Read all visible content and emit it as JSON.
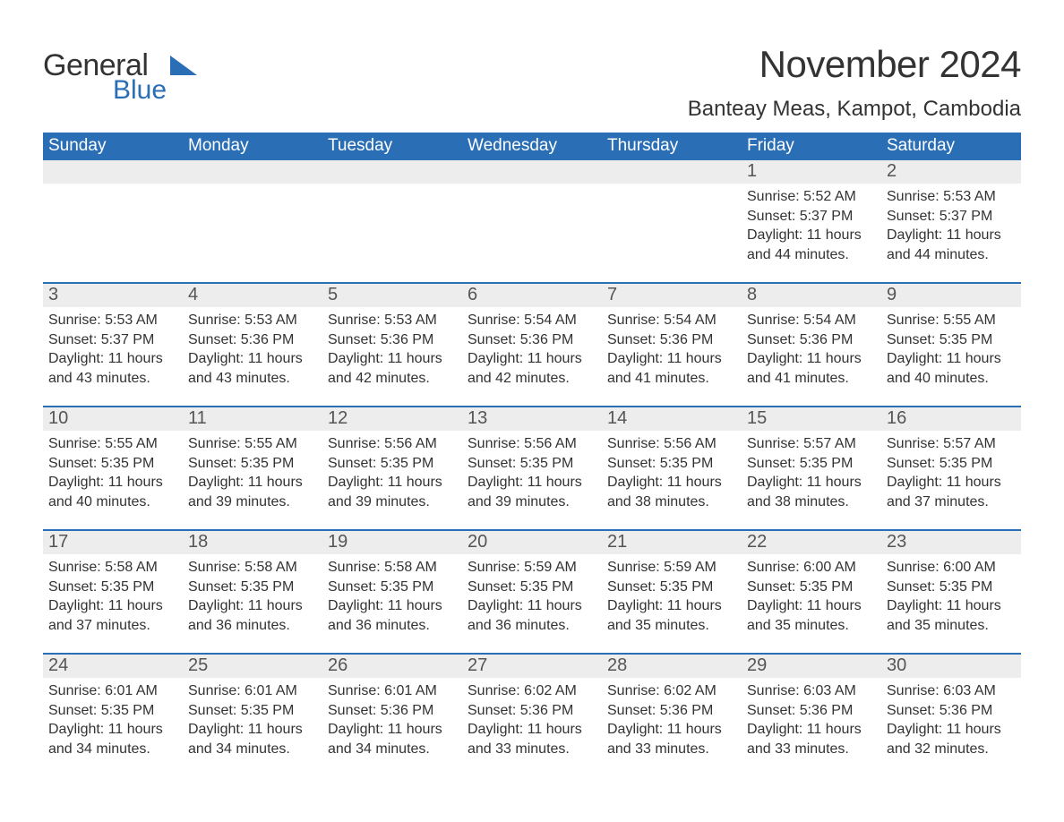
{
  "brand": {
    "name_main": "General",
    "name_sub": "Blue",
    "accent_color": "#2a6eb6",
    "text_color": "#333333"
  },
  "title": {
    "month_year": "November 2024",
    "location": "Banteay Meas, Kampot, Cambodia"
  },
  "calendar": {
    "header_bg": "#2a6eb6",
    "header_text_color": "#ffffff",
    "daynum_bg": "#ededed",
    "row_border_color": "#2a6eb6",
    "weekdays": [
      "Sunday",
      "Monday",
      "Tuesday",
      "Wednesday",
      "Thursday",
      "Friday",
      "Saturday"
    ],
    "weeks": [
      [
        {
          "empty": true
        },
        {
          "empty": true
        },
        {
          "empty": true
        },
        {
          "empty": true
        },
        {
          "empty": true
        },
        {
          "day": "1",
          "sunrise": "Sunrise: 5:52 AM",
          "sunset": "Sunset: 5:37 PM",
          "daylight": "Daylight: 11 hours and 44 minutes."
        },
        {
          "day": "2",
          "sunrise": "Sunrise: 5:53 AM",
          "sunset": "Sunset: 5:37 PM",
          "daylight": "Daylight: 11 hours and 44 minutes."
        }
      ],
      [
        {
          "day": "3",
          "sunrise": "Sunrise: 5:53 AM",
          "sunset": "Sunset: 5:37 PM",
          "daylight": "Daylight: 11 hours and 43 minutes."
        },
        {
          "day": "4",
          "sunrise": "Sunrise: 5:53 AM",
          "sunset": "Sunset: 5:36 PM",
          "daylight": "Daylight: 11 hours and 43 minutes."
        },
        {
          "day": "5",
          "sunrise": "Sunrise: 5:53 AM",
          "sunset": "Sunset: 5:36 PM",
          "daylight": "Daylight: 11 hours and 42 minutes."
        },
        {
          "day": "6",
          "sunrise": "Sunrise: 5:54 AM",
          "sunset": "Sunset: 5:36 PM",
          "daylight": "Daylight: 11 hours and 42 minutes."
        },
        {
          "day": "7",
          "sunrise": "Sunrise: 5:54 AM",
          "sunset": "Sunset: 5:36 PM",
          "daylight": "Daylight: 11 hours and 41 minutes."
        },
        {
          "day": "8",
          "sunrise": "Sunrise: 5:54 AM",
          "sunset": "Sunset: 5:36 PM",
          "daylight": "Daylight: 11 hours and 41 minutes."
        },
        {
          "day": "9",
          "sunrise": "Sunrise: 5:55 AM",
          "sunset": "Sunset: 5:35 PM",
          "daylight": "Daylight: 11 hours and 40 minutes."
        }
      ],
      [
        {
          "day": "10",
          "sunrise": "Sunrise: 5:55 AM",
          "sunset": "Sunset: 5:35 PM",
          "daylight": "Daylight: 11 hours and 40 minutes."
        },
        {
          "day": "11",
          "sunrise": "Sunrise: 5:55 AM",
          "sunset": "Sunset: 5:35 PM",
          "daylight": "Daylight: 11 hours and 39 minutes."
        },
        {
          "day": "12",
          "sunrise": "Sunrise: 5:56 AM",
          "sunset": "Sunset: 5:35 PM",
          "daylight": "Daylight: 11 hours and 39 minutes."
        },
        {
          "day": "13",
          "sunrise": "Sunrise: 5:56 AM",
          "sunset": "Sunset: 5:35 PM",
          "daylight": "Daylight: 11 hours and 39 minutes."
        },
        {
          "day": "14",
          "sunrise": "Sunrise: 5:56 AM",
          "sunset": "Sunset: 5:35 PM",
          "daylight": "Daylight: 11 hours and 38 minutes."
        },
        {
          "day": "15",
          "sunrise": "Sunrise: 5:57 AM",
          "sunset": "Sunset: 5:35 PM",
          "daylight": "Daylight: 11 hours and 38 minutes."
        },
        {
          "day": "16",
          "sunrise": "Sunrise: 5:57 AM",
          "sunset": "Sunset: 5:35 PM",
          "daylight": "Daylight: 11 hours and 37 minutes."
        }
      ],
      [
        {
          "day": "17",
          "sunrise": "Sunrise: 5:58 AM",
          "sunset": "Sunset: 5:35 PM",
          "daylight": "Daylight: 11 hours and 37 minutes."
        },
        {
          "day": "18",
          "sunrise": "Sunrise: 5:58 AM",
          "sunset": "Sunset: 5:35 PM",
          "daylight": "Daylight: 11 hours and 36 minutes."
        },
        {
          "day": "19",
          "sunrise": "Sunrise: 5:58 AM",
          "sunset": "Sunset: 5:35 PM",
          "daylight": "Daylight: 11 hours and 36 minutes."
        },
        {
          "day": "20",
          "sunrise": "Sunrise: 5:59 AM",
          "sunset": "Sunset: 5:35 PM",
          "daylight": "Daylight: 11 hours and 36 minutes."
        },
        {
          "day": "21",
          "sunrise": "Sunrise: 5:59 AM",
          "sunset": "Sunset: 5:35 PM",
          "daylight": "Daylight: 11 hours and 35 minutes."
        },
        {
          "day": "22",
          "sunrise": "Sunrise: 6:00 AM",
          "sunset": "Sunset: 5:35 PM",
          "daylight": "Daylight: 11 hours and 35 minutes."
        },
        {
          "day": "23",
          "sunrise": "Sunrise: 6:00 AM",
          "sunset": "Sunset: 5:35 PM",
          "daylight": "Daylight: 11 hours and 35 minutes."
        }
      ],
      [
        {
          "day": "24",
          "sunrise": "Sunrise: 6:01 AM",
          "sunset": "Sunset: 5:35 PM",
          "daylight": "Daylight: 11 hours and 34 minutes."
        },
        {
          "day": "25",
          "sunrise": "Sunrise: 6:01 AM",
          "sunset": "Sunset: 5:35 PM",
          "daylight": "Daylight: 11 hours and 34 minutes."
        },
        {
          "day": "26",
          "sunrise": "Sunrise: 6:01 AM",
          "sunset": "Sunset: 5:36 PM",
          "daylight": "Daylight: 11 hours and 34 minutes."
        },
        {
          "day": "27",
          "sunrise": "Sunrise: 6:02 AM",
          "sunset": "Sunset: 5:36 PM",
          "daylight": "Daylight: 11 hours and 33 minutes."
        },
        {
          "day": "28",
          "sunrise": "Sunrise: 6:02 AM",
          "sunset": "Sunset: 5:36 PM",
          "daylight": "Daylight: 11 hours and 33 minutes."
        },
        {
          "day": "29",
          "sunrise": "Sunrise: 6:03 AM",
          "sunset": "Sunset: 5:36 PM",
          "daylight": "Daylight: 11 hours and 33 minutes."
        },
        {
          "day": "30",
          "sunrise": "Sunrise: 6:03 AM",
          "sunset": "Sunset: 5:36 PM",
          "daylight": "Daylight: 11 hours and 32 minutes."
        }
      ]
    ]
  }
}
